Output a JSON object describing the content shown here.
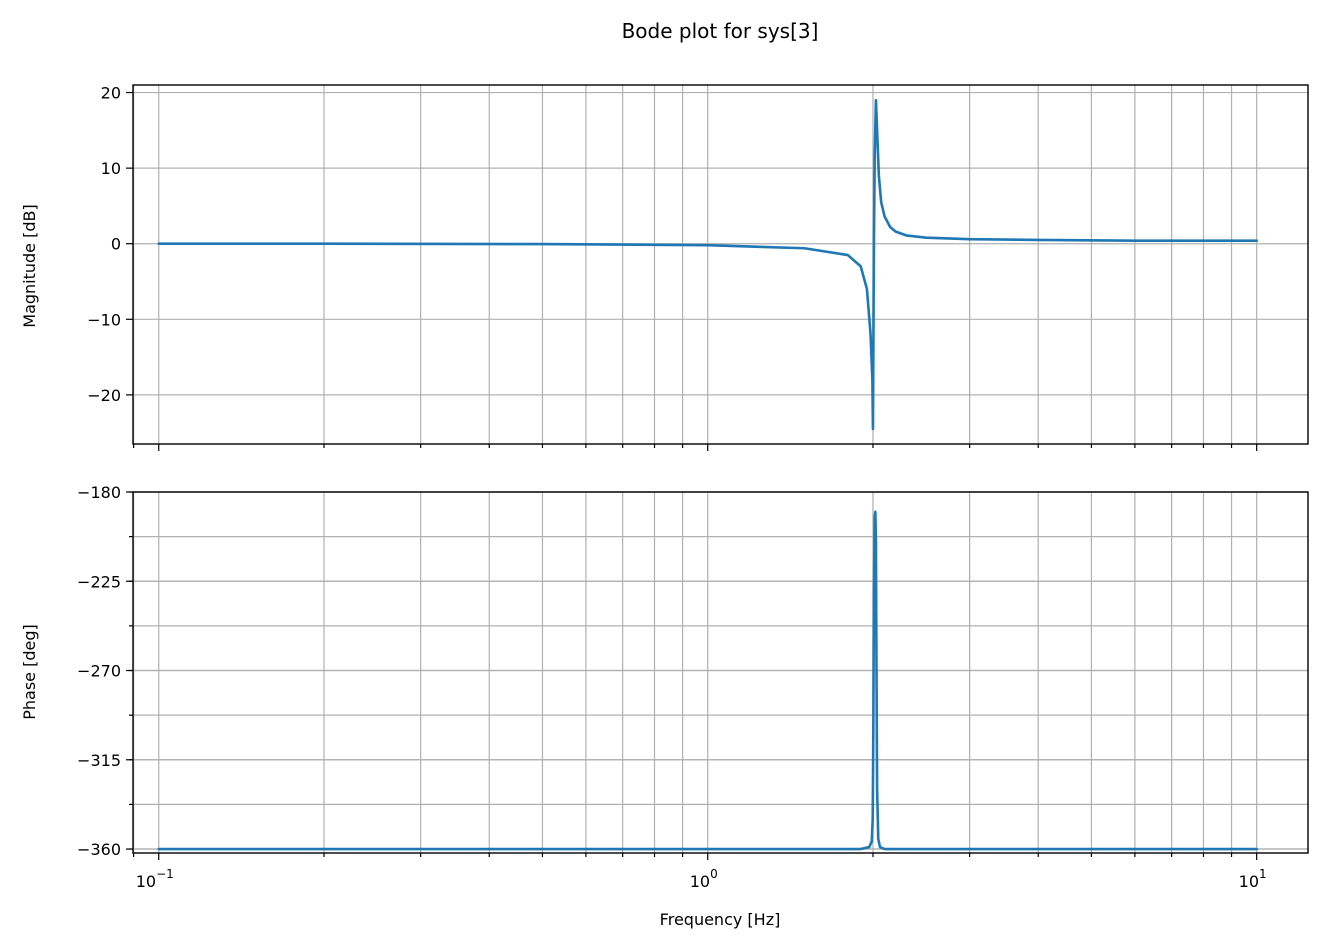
{
  "chart_data": {
    "type": "line",
    "title": "Bode plot for sys[3]",
    "x_scale": "log",
    "xlabel": "Frequency [Hz]",
    "x_tick_labels": [
      {
        "value": 0.1,
        "base": "10",
        "exp": "−1"
      },
      {
        "value": 1,
        "base": "10",
        "exp": "0"
      },
      {
        "value": 10,
        "base": "10",
        "exp": "1"
      }
    ],
    "line_color": "#1f77b4",
    "grid": true,
    "subplots": [
      {
        "name": "magnitude",
        "ylabel": "Magnitude [dB]",
        "ylim": [
          -26.5,
          21
        ],
        "yticks": [
          -20,
          -10,
          0,
          10,
          20
        ],
        "ytick_labels": [
          "−20",
          "−10",
          "0",
          "10",
          "20"
        ],
        "x_tick_labels_visible": false,
        "series": [
          {
            "x": [
              0.1,
              0.2,
              0.5,
              1.0,
              1.5,
              1.8,
              1.9,
              1.95,
              1.98,
              1.995,
              2.0,
              2.003,
              2.008,
              2.015,
              2.025,
              2.035,
              2.05,
              2.07,
              2.1,
              2.15,
              2.2,
              2.3,
              2.5,
              3.0,
              4.0,
              6.0,
              10.0
            ],
            "y": [
              0.0,
              0.0,
              -0.05,
              -0.2,
              -0.6,
              -1.5,
              -3.0,
              -6.0,
              -12.0,
              -18.0,
              -24.5,
              -15.0,
              0.0,
              12.0,
              19.0,
              15.0,
              9.0,
              5.5,
              3.6,
              2.2,
              1.6,
              1.1,
              0.8,
              0.6,
              0.5,
              0.4,
              0.4
            ]
          }
        ]
      },
      {
        "name": "phase",
        "ylabel": "Phase [deg]",
        "ylim": [
          -362,
          -180
        ],
        "yticks": [
          -360,
          -315,
          -270,
          -225,
          -180
        ],
        "ytick_labels": [
          "−360",
          "−315",
          "−270",
          "−225",
          "−180"
        ],
        "x_tick_labels_visible": true,
        "series": [
          {
            "x": [
              0.1,
              1.0,
              1.9,
              1.97,
              1.99,
              1.998,
              2.003,
              2.008,
              2.015,
              2.02,
              2.025,
              2.03,
              2.035,
              2.045,
              2.06,
              2.1,
              3.0,
              10.0
            ],
            "y": [
              -360,
              -360,
              -360,
              -359,
              -356,
              -345,
              -300,
              -230,
              -192,
              -190,
              -205,
              -270,
              -330,
              -355,
              -359,
              -360,
              -360,
              -360
            ]
          }
        ]
      }
    ]
  }
}
